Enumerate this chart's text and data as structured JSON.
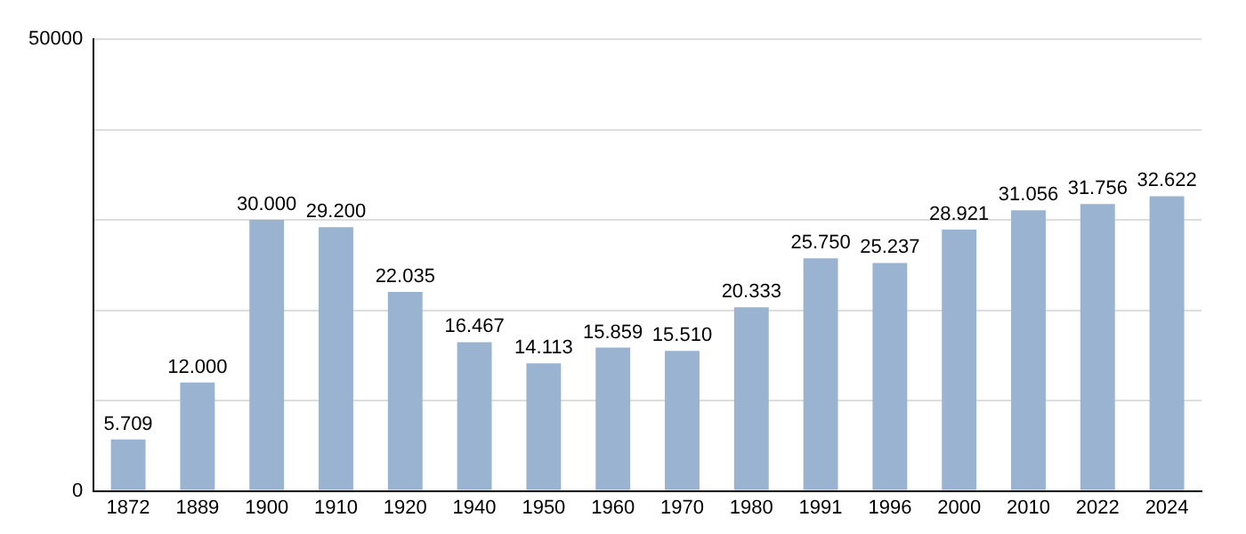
{
  "chart_data": {
    "type": "bar",
    "categories": [
      "1872",
      "1889",
      "1900",
      "1910",
      "1920",
      "1940",
      "1950",
      "1960",
      "1970",
      "1980",
      "1991",
      "1996",
      "2000",
      "2010",
      "2022",
      "2024"
    ],
    "values": [
      5709,
      12000,
      30000,
      29200,
      22035,
      16467,
      14113,
      15859,
      15510,
      20333,
      25750,
      25237,
      28921,
      31056,
      31756,
      32622
    ],
    "value_labels": [
      "5.709",
      "12.000",
      "30.000",
      "29.200",
      "22.035",
      "16.467",
      "14.113",
      "15.859",
      "15.510",
      "20.333",
      "25.750",
      "25.237",
      "28.921",
      "31.056",
      "31.756",
      "32.622"
    ],
    "color": "#9ab3d0",
    "ylim": [
      0,
      50000
    ],
    "yticks": [
      0,
      {
        "value": 10000,
        "label": null
      },
      {
        "value": 20000,
        "label": null
      },
      {
        "value": 30000,
        "label": null
      },
      {
        "value": 40000,
        "label": null
      },
      50000
    ],
    "grid": "y"
  }
}
